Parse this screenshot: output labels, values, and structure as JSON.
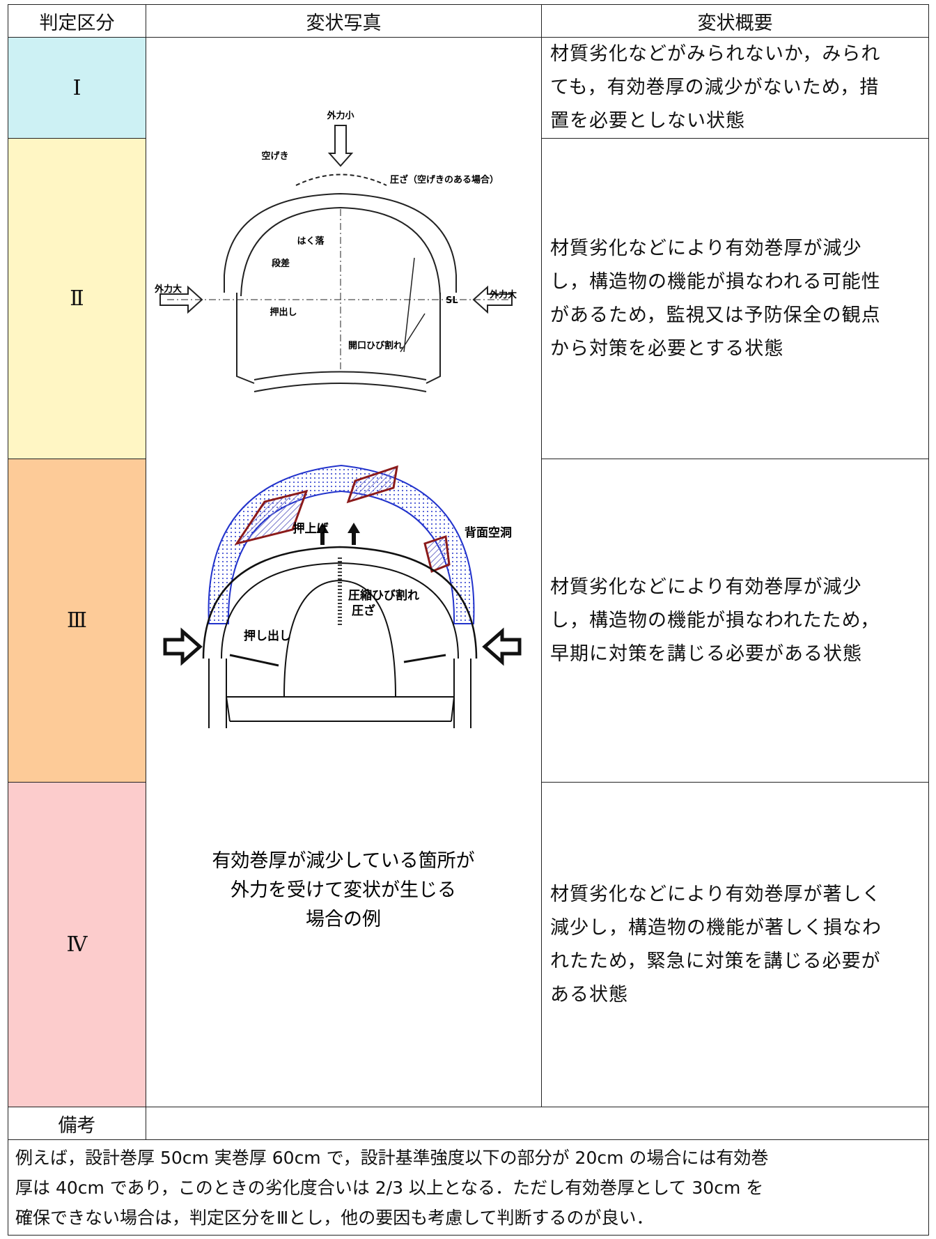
{
  "table": {
    "header": [
      "判定区分",
      "変状写真",
      "変状概要"
    ],
    "rows": [
      {
        "grade": "Ⅰ",
        "summary": [
          "材質劣化などがみられないか，みられ",
          "ても，有効巻厚の減少がないため，措",
          "置を必要としない状態"
        ]
      },
      {
        "grade": "Ⅱ",
        "summary": [
          "材質劣化などにより有効巻厚が減少",
          "し，構造物の機能が損なわれる可能性",
          "があるため，監視又は予防保全の観点",
          "から対策を必要とする状態"
        ]
      },
      {
        "grade": "Ⅲ",
        "summary": [
          "材質劣化などにより有効巻厚が減少",
          "し，構造物の機能が損なわれたため，",
          "早期に対策を講じる必要がある状態"
        ]
      },
      {
        "grade": "Ⅳ",
        "summary": [
          "材質劣化などにより有効巻厚が著しく",
          "減少し，構造物の機能が著しく損なわ",
          "れたため，緊急に対策を講じる必要が",
          "ある状態"
        ]
      }
    ],
    "figure": {
      "diagram1_labels": [
        "外力小",
        "空げき",
        "圧ざ（空げきのある場合）",
        "はく落",
        "段差",
        "外力大",
        "押出し",
        "SL",
        "外力大",
        "開口ひび割れ"
      ],
      "diagram2_labels": [
        "押上げ",
        "背面空洞",
        "圧縮ひび割れ",
        "圧ざ",
        "押し出し"
      ],
      "caption": [
        "有効巻厚が減少している箇所が",
        "外力を受けて変状が生じる",
        "場合の例"
      ]
    },
    "remarks": {
      "label": "備考",
      "text": [
        "例えば，設計巻厚 50cm 実巻厚 60cm で，設計基準強度以下の部分が 20cm の場合には有効巻",
        "厚は 40cm であり，このときの劣化度合いは 2/3 以上となる．ただし有効巻厚として 30cm を",
        "確保できない場合は，判定区分をⅢとし，他の要因も考慮して判断するのが良い．"
      ]
    }
  }
}
